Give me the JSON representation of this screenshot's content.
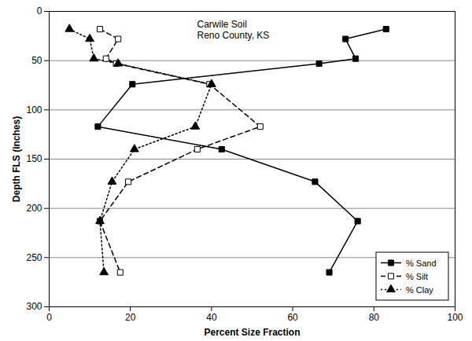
{
  "chart_data": {
    "type": "line",
    "annotations": [
      "Carwile Soil",
      "Reno County, KS"
    ],
    "x_label": "Percent Size Fraction",
    "y_label": "Depth FLS (inches)",
    "xlim": [
      0,
      100
    ],
    "xticks": [
      0,
      20,
      40,
      60,
      80,
      100
    ],
    "ylim": [
      0,
      300
    ],
    "yticks": [
      0,
      50,
      100,
      150,
      200,
      250,
      300
    ],
    "grid": true,
    "legend": "bottom-right",
    "y": [
      18,
      28,
      48,
      53,
      74,
      117,
      140,
      173,
      213,
      265
    ],
    "series": [
      {
        "name": "% Sand",
        "color": "#000000",
        "marker": "square",
        "line_style": "solid",
        "values": [
          83,
          73,
          75.5,
          66.5,
          20.5,
          12,
          42.5,
          65.5,
          76,
          69
        ]
      },
      {
        "name": "% Silt",
        "color": "#000000",
        "marker": "open-square",
        "line_style": "dashed",
        "values": [
          12.5,
          17,
          14,
          16.5,
          39.5,
          52,
          36.5,
          19.5,
          12.5,
          17.5
        ]
      },
      {
        "name": "% Clay",
        "color": "#000000",
        "marker": "triangle",
        "line_style": "dotted",
        "values": [
          5,
          10,
          11,
          17,
          40,
          36,
          21,
          15.5,
          12.5,
          13.5
        ]
      }
    ]
  }
}
